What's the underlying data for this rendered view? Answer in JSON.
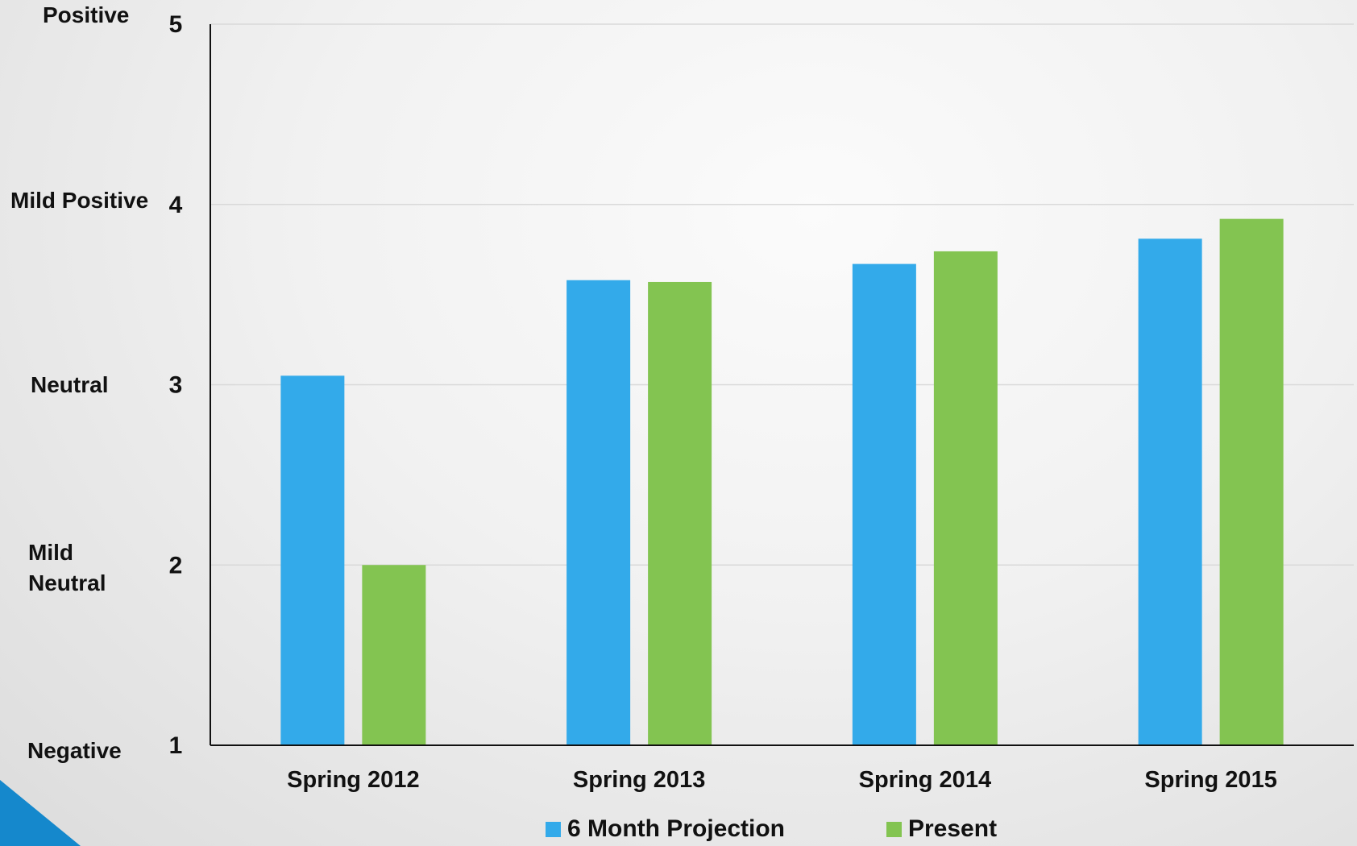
{
  "chart_data": {
    "type": "bar",
    "categories": [
      "Spring 2012",
      "Spring 2013",
      "Spring 2014",
      "Spring 2015"
    ],
    "series": [
      {
        "name": "6 Month Projection",
        "values": [
          3.05,
          3.58,
          3.67,
          3.81
        ],
        "color": "#33aaea"
      },
      {
        "name": "Present",
        "values": [
          2.0,
          3.57,
          3.74,
          3.92
        ],
        "color": "#83c451"
      }
    ],
    "ylim": [
      1,
      5
    ],
    "yticks": [
      "1",
      "2",
      "3",
      "4",
      "5"
    ],
    "category_labels": [
      "Negative",
      "Mild\nNeutral",
      "Neutral",
      "Mild Positive",
      "Positive"
    ],
    "title": "",
    "xlabel": "",
    "ylabel": "",
    "grid": true,
    "legend_position": "bottom"
  },
  "colors": {
    "axis": "#111111",
    "gridline": "#d9d9d9",
    "corner_accent": "#1588cc"
  },
  "decor": {
    "corner_icon": "triangle-accent"
  }
}
